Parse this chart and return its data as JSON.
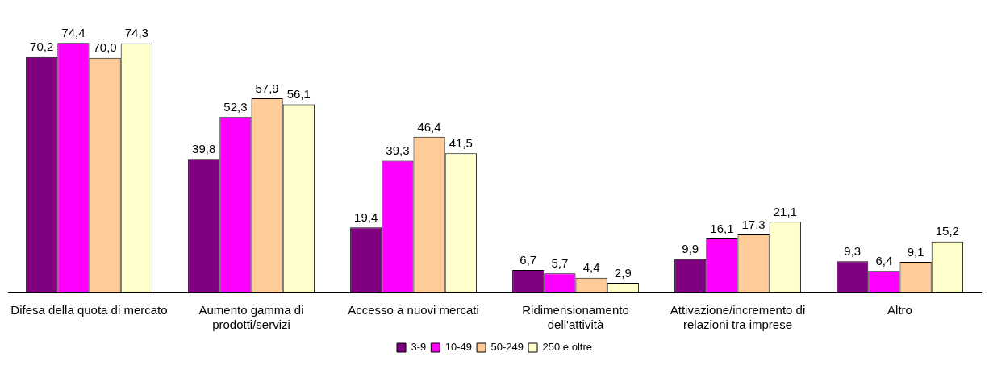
{
  "chart_data": {
    "type": "bar",
    "categories": [
      "Difesa della quota di mercato",
      "Aumento gamma di prodotti/servizi",
      "Accesso a nuovi mercati",
      "Ridimensionamento dell'attività",
      "Attivazione/incremento di relazioni tra imprese",
      "Altro"
    ],
    "series": [
      {
        "name": "3-9",
        "color": "#800080",
        "values": [
          70.2,
          39.8,
          19.4,
          6.7,
          9.9,
          9.3
        ],
        "value_labels": [
          "70,2",
          "39,8",
          "19,4",
          "6,7",
          "9,9",
          "9,3"
        ]
      },
      {
        "name": "10-49",
        "color": "#ff00ff",
        "values": [
          74.4,
          52.3,
          39.3,
          5.7,
          16.1,
          6.4
        ],
        "value_labels": [
          "74,4",
          "52,3",
          "39,3",
          "5,7",
          "16,1",
          "6,4"
        ]
      },
      {
        "name": "50-249",
        "color": "#ffcc99",
        "values": [
          70.0,
          57.9,
          46.4,
          4.4,
          17.3,
          9.1
        ],
        "value_labels": [
          "70,0",
          "57,9",
          "46,4",
          "4,4",
          "17,3",
          "9,1"
        ]
      },
      {
        "name": "250 e oltre",
        "color": "#ffffcc",
        "values": [
          74.3,
          56.1,
          41.5,
          2.9,
          21.1,
          15.2
        ],
        "value_labels": [
          "74,3",
          "56,1",
          "41,5",
          "2,9",
          "21,1",
          "15,2"
        ]
      }
    ],
    "legend": "bottom",
    "grid": false
  }
}
